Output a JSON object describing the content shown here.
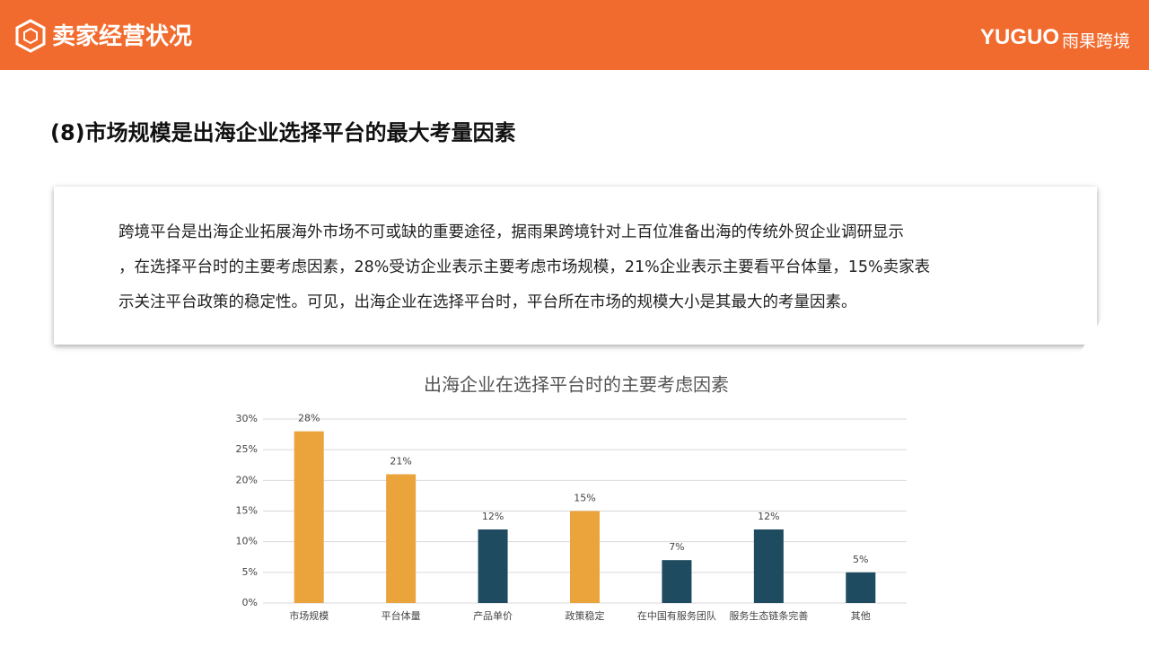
{
  "header": {
    "title": "卖家经营状况",
    "logo_en": "YUGUO",
    "logo_cn": "雨果跨境"
  },
  "heading": "(8)市场规模是出海企业选择平台的最大考量因素",
  "paragraph_lines": [
    "跨境平台是出海企业拓展海外市场不可或缺的重要途径，据雨果跨境针对上百位准备出海的传统外贸企业调研显示",
    "，在选择平台时的主要考虑因素，28%受访企业表示主要考虑市场规模，21%企业表示主要看平台体量，15%卖家表",
    "示关注平台政策的稳定性。可见，出海企业在选择平台时，平台所在市场的规模大小是其最大的考量因素。"
  ],
  "chart_data": {
    "type": "bar",
    "title": "出海企业在选择平台时的主要考虑因素",
    "categories": [
      "市场规模",
      "平台体量",
      "产品单价",
      "政策稳定",
      "在中国有服务团队",
      "服务生态链条完善",
      "其他"
    ],
    "values": [
      28,
      21,
      12,
      15,
      7,
      12,
      5
    ],
    "value_labels": [
      "28%",
      "21%",
      "12%",
      "15%",
      "7%",
      "12%",
      "5%"
    ],
    "colors": [
      "#eba43b",
      "#eba43b",
      "#1e4b60",
      "#eba43b",
      "#1e4b60",
      "#1e4b60",
      "#1e4b60"
    ],
    "ylim": [
      0,
      30
    ],
    "yticks": [
      {
        "value": 0,
        "label": "0%"
      },
      {
        "value": 5,
        "label": "5%"
      },
      {
        "value": 10,
        "label": "10%"
      },
      {
        "value": 15,
        "label": "15%"
      },
      {
        "value": 20,
        "label": "20%"
      },
      {
        "value": 25,
        "label": "25%"
      },
      {
        "value": 30,
        "label": "30%"
      }
    ],
    "grid": true
  }
}
